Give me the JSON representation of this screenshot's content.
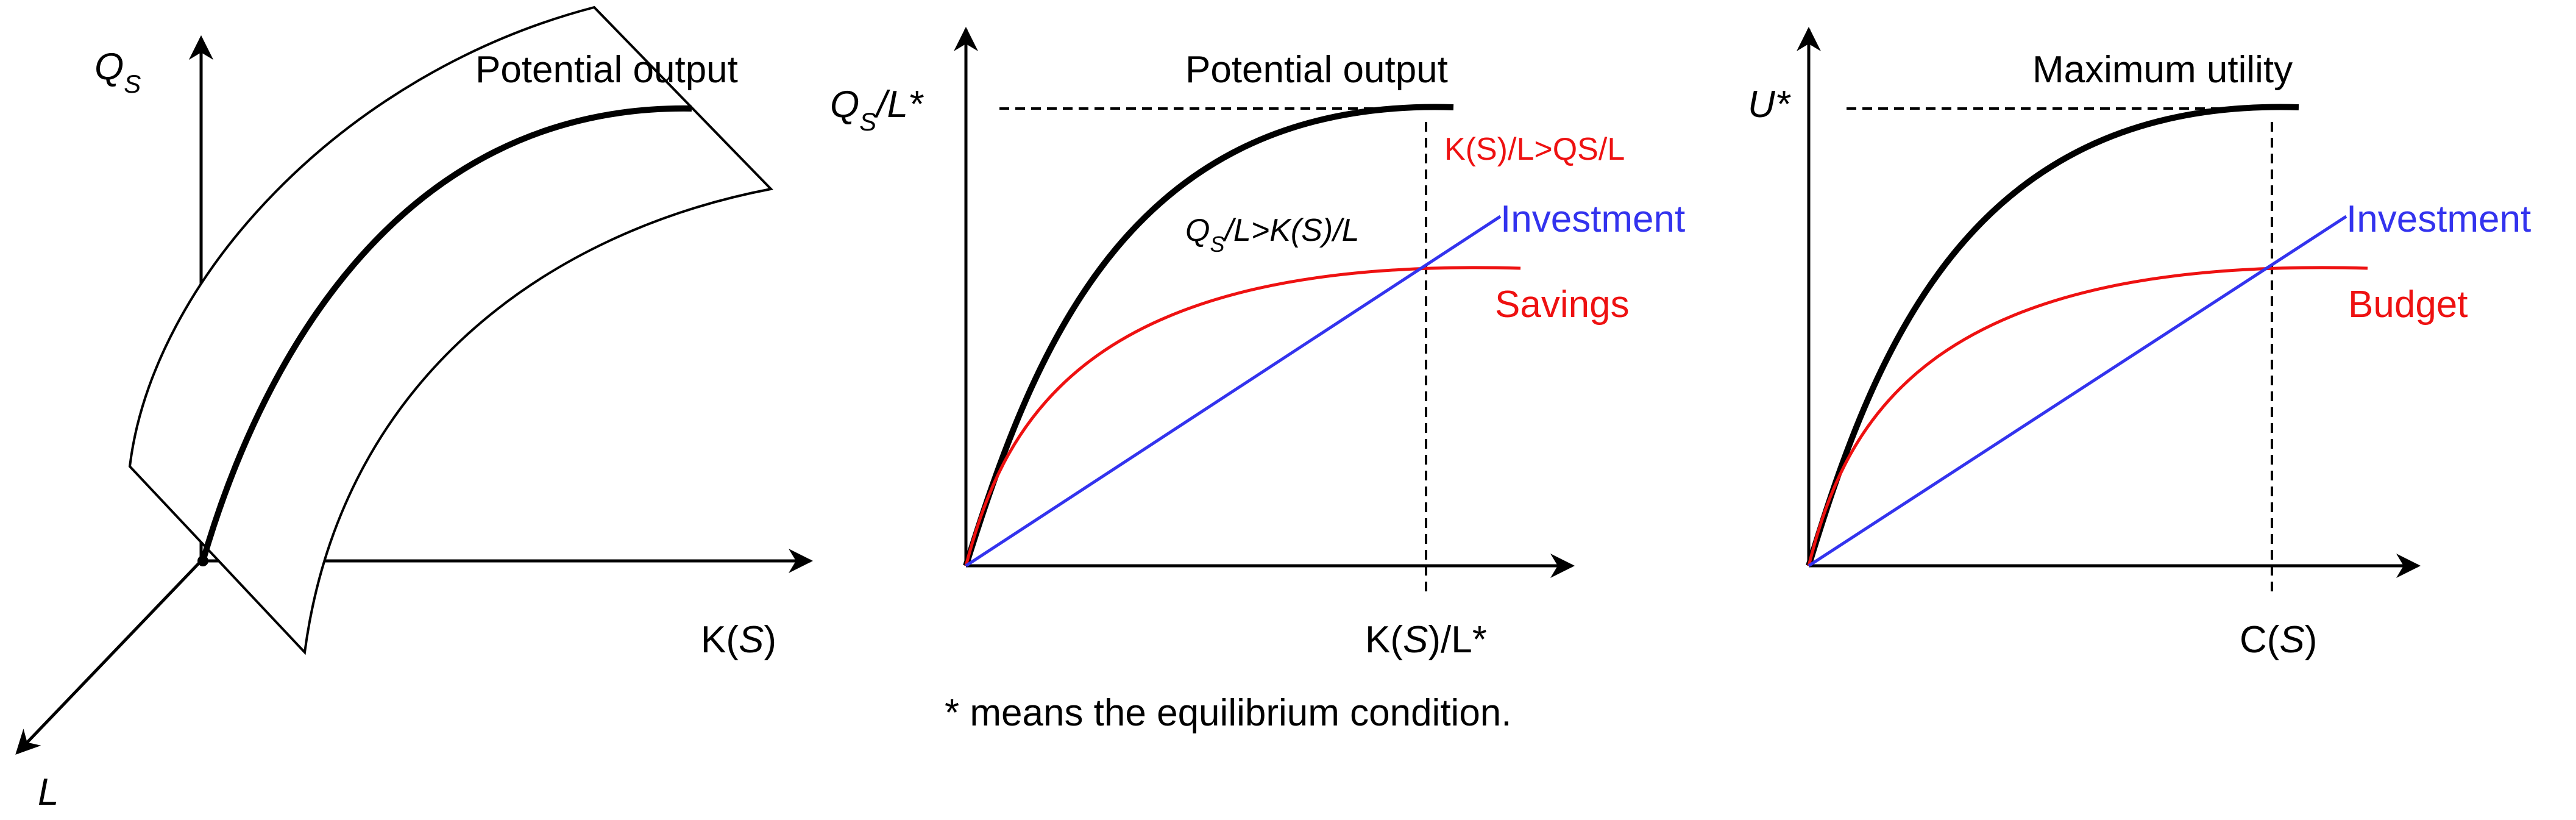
{
  "colors": {
    "axis": "#000000",
    "potential_curve": "#000000",
    "investment": "#3333ee",
    "savings": "#ee1111"
  },
  "panel1": {
    "title": "Potential output",
    "y_axis_label": "Q",
    "y_axis_sub": "S",
    "x_axis_label_pre": "K(",
    "x_axis_label_var": "S",
    "x_axis_label_post": ")",
    "z_axis_label": "L"
  },
  "panel2": {
    "title": "Potential output",
    "y_eq_label_a": "Q",
    "y_eq_label_sub": "S",
    "y_eq_label_b": "/L*",
    "x_eq_label_a": "K(",
    "x_eq_label_var": "S",
    "x_eq_label_b": ")/L*",
    "region_above_a": "Q",
    "region_above_sub": "S",
    "region_above_b": "/L>K(",
    "region_above_var": "S",
    "region_above_c": ")/L",
    "region_right": "K(S)/L>QS/L",
    "investment_label": "Investment",
    "savings_label": "Savings"
  },
  "panel3": {
    "title": "Maximum utility",
    "y_eq_label": "U*",
    "x_eq_label_a": "C(",
    "x_eq_label_var": "S",
    "x_eq_label_b": ")",
    "investment_label": "Investment",
    "budget_label": "Budget"
  },
  "footnote": "* means the equilibrium condition."
}
